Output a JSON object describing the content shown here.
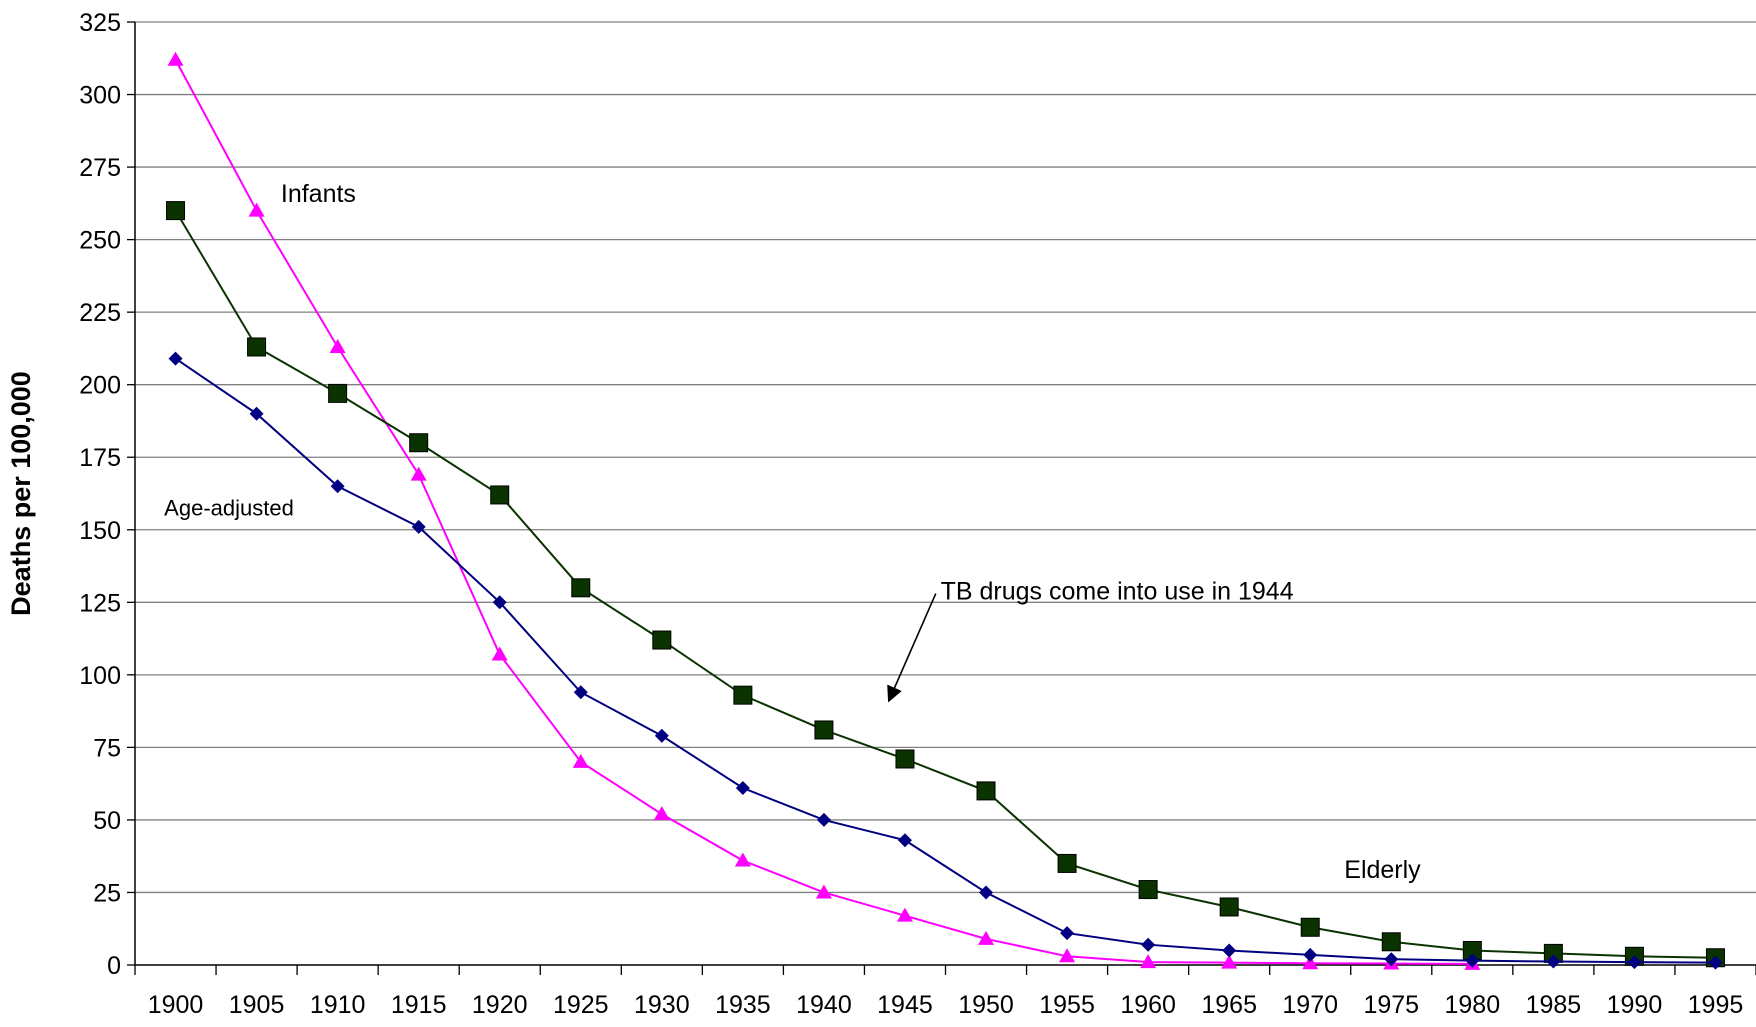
{
  "chart_data": {
    "type": "line",
    "title": "",
    "xlabel": "",
    "ylabel": "Deaths per 100,000",
    "x": [
      1900,
      1905,
      1910,
      1915,
      1920,
      1925,
      1930,
      1935,
      1940,
      1945,
      1950,
      1955,
      1960,
      1965,
      1970,
      1975,
      1980,
      1985,
      1990,
      1995
    ],
    "ylim": [
      0,
      325
    ],
    "yticks": [
      0,
      25,
      50,
      75,
      100,
      125,
      150,
      175,
      200,
      225,
      250,
      275,
      300,
      325
    ],
    "grid": "horizontal",
    "legend": "none",
    "series": [
      {
        "name": "Infants",
        "color": "#ff00ff",
        "marker": "triangle",
        "values": [
          312,
          260,
          213,
          169,
          107,
          70,
          52,
          36,
          25,
          17,
          9,
          3,
          1,
          0.8,
          0.6,
          0.5,
          0.4,
          null,
          null,
          null
        ]
      },
      {
        "name": "Elderly",
        "color": "#0a3300",
        "marker": "square",
        "values": [
          260,
          213,
          197,
          180,
          162,
          130,
          112,
          93,
          81,
          71,
          60,
          35,
          26,
          20,
          13,
          8,
          5,
          4,
          3,
          2.5
        ]
      },
      {
        "name": "Age-adjusted",
        "color": "#000080",
        "marker": "diamond",
        "values": [
          209,
          190,
          165,
          151,
          125,
          94,
          79,
          61,
          50,
          43,
          25,
          11,
          7,
          5,
          3.5,
          2,
          1.5,
          1.2,
          1,
          0.8
        ]
      }
    ],
    "annotations": [
      {
        "id": "infants",
        "text": "Infants",
        "x": 1906.5,
        "y": 263
      },
      {
        "id": "age-adjusted",
        "text": "Age-adjusted",
        "x": 1899.3,
        "y": 155
      },
      {
        "id": "elderly",
        "text": "Elderly",
        "x": 1972.1,
        "y": 30
      },
      {
        "id": "tb-drugs",
        "text": "TB drugs come into use in 1944",
        "x": 1947.2,
        "y": 126,
        "arrow_from": [
          1946.9,
          128
        ],
        "arrow_to": [
          1944.0,
          91
        ]
      }
    ]
  }
}
